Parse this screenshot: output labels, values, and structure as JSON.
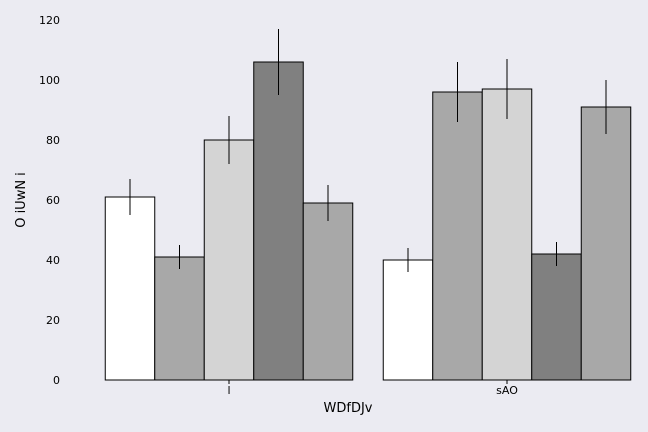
{
  "chart_data": {
    "type": "bar",
    "title": "",
    "xlabel": "WDfDJv",
    "ylabel": "O iUwN i",
    "categories": [
      "l",
      "sAO"
    ],
    "ylim": [
      0,
      120
    ],
    "yticks": [
      0,
      20,
      40,
      60,
      80,
      100,
      120
    ],
    "grid": false,
    "legend": "none",
    "series": [
      {
        "values": [
          61,
          40
        ],
        "errors": [
          6,
          4
        ],
        "color": "#ffffff"
      },
      {
        "values": [
          41,
          96
        ],
        "errors": [
          4,
          10
        ],
        "color": "#a8a8a8"
      },
      {
        "values": [
          80,
          97
        ],
        "errors": [
          8,
          10
        ],
        "color": "#d4d4d4"
      },
      {
        "values": [
          106,
          42
        ],
        "errors": [
          11,
          4
        ],
        "color": "#808080"
      },
      {
        "values": [
          59,
          91
        ],
        "errors": [
          6,
          9
        ],
        "color": "#a8a8a8"
      }
    ]
  }
}
